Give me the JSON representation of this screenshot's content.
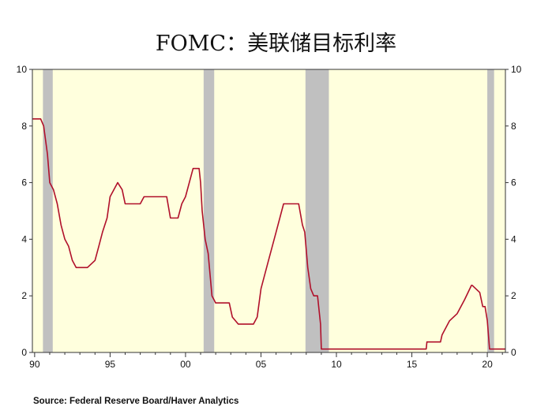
{
  "chart_data": {
    "type": "line",
    "title": "FOMC：美联储目标利率",
    "source": "Source:  Federal Reserve Board/Haver Analytics",
    "xlim": [
      1989.85,
      2021.2
    ],
    "ylim": [
      0,
      10
    ],
    "x_ticks": [
      1990,
      1995,
      2000,
      2005,
      2010,
      2015,
      2020
    ],
    "x_tick_labels": [
      "90",
      "95",
      "00",
      "05",
      "10",
      "15",
      "20"
    ],
    "y_ticks": [
      0,
      2,
      4,
      6,
      8,
      10
    ],
    "y_tick_labels": [
      "0",
      "2",
      "4",
      "6",
      "8",
      "10"
    ],
    "grid": false,
    "colors": {
      "line": "#b0102a",
      "background": "#ffffdd",
      "recession": "#c0c0c0"
    },
    "recessions": [
      [
        1990.55,
        1991.2
      ],
      [
        2001.2,
        2001.9
      ],
      [
        2007.95,
        2009.5
      ],
      [
        2020.0,
        2020.45
      ]
    ],
    "series": [
      {
        "x": [
          1989.85,
          1990.4,
          1990.6,
          1990.85,
          1991.0,
          1991.25,
          1991.5,
          1991.75,
          1992.0,
          1992.25,
          1992.5,
          1992.75,
          1993.0,
          1993.5,
          1994.0,
          1994.25,
          1994.5,
          1994.8,
          1995.0,
          1995.5,
          1995.8,
          1996.0,
          1996.5,
          1997.0,
          1997.25,
          1998.0,
          1998.75,
          1999.0,
          1999.5,
          1999.75,
          2000.0,
          2000.5,
          2000.9,
          2001.0,
          2001.1,
          2001.3,
          2001.5,
          2001.75,
          2002.0,
          2002.9,
          2003.1,
          2003.5,
          2004.5,
          2004.75,
          2005.0,
          2005.5,
          2006.0,
          2006.5,
          2007.5,
          2007.75,
          2007.9,
          2008.1,
          2008.3,
          2008.5,
          2008.75,
          2008.95,
          2009.0,
          2015.95,
          2016.0,
          2016.9,
          2017.0,
          2017.5,
          2018.0,
          2018.5,
          2018.95,
          2019.0,
          2019.5,
          2019.7,
          2019.85,
          2020.0,
          2020.15,
          2020.25,
          2021.2
        ],
        "y": [
          8.25,
          8.25,
          8.0,
          7.0,
          6.0,
          5.75,
          5.25,
          4.5,
          4.0,
          3.75,
          3.25,
          3.0,
          3.0,
          3.0,
          3.25,
          3.75,
          4.25,
          4.75,
          5.5,
          6.0,
          5.75,
          5.25,
          5.25,
          5.25,
          5.5,
          5.5,
          5.5,
          4.75,
          4.75,
          5.25,
          5.5,
          6.5,
          6.5,
          6.0,
          5.0,
          4.0,
          3.5,
          2.0,
          1.75,
          1.75,
          1.25,
          1.0,
          1.0,
          1.25,
          2.25,
          3.25,
          4.25,
          5.25,
          5.25,
          4.5,
          4.25,
          3.0,
          2.25,
          2.0,
          2.0,
          1.0,
          0.12,
          0.12,
          0.37,
          0.37,
          0.62,
          1.12,
          1.37,
          1.87,
          2.37,
          2.37,
          2.12,
          1.62,
          1.62,
          1.12,
          0.12,
          0.12,
          0.12
        ]
      }
    ]
  }
}
